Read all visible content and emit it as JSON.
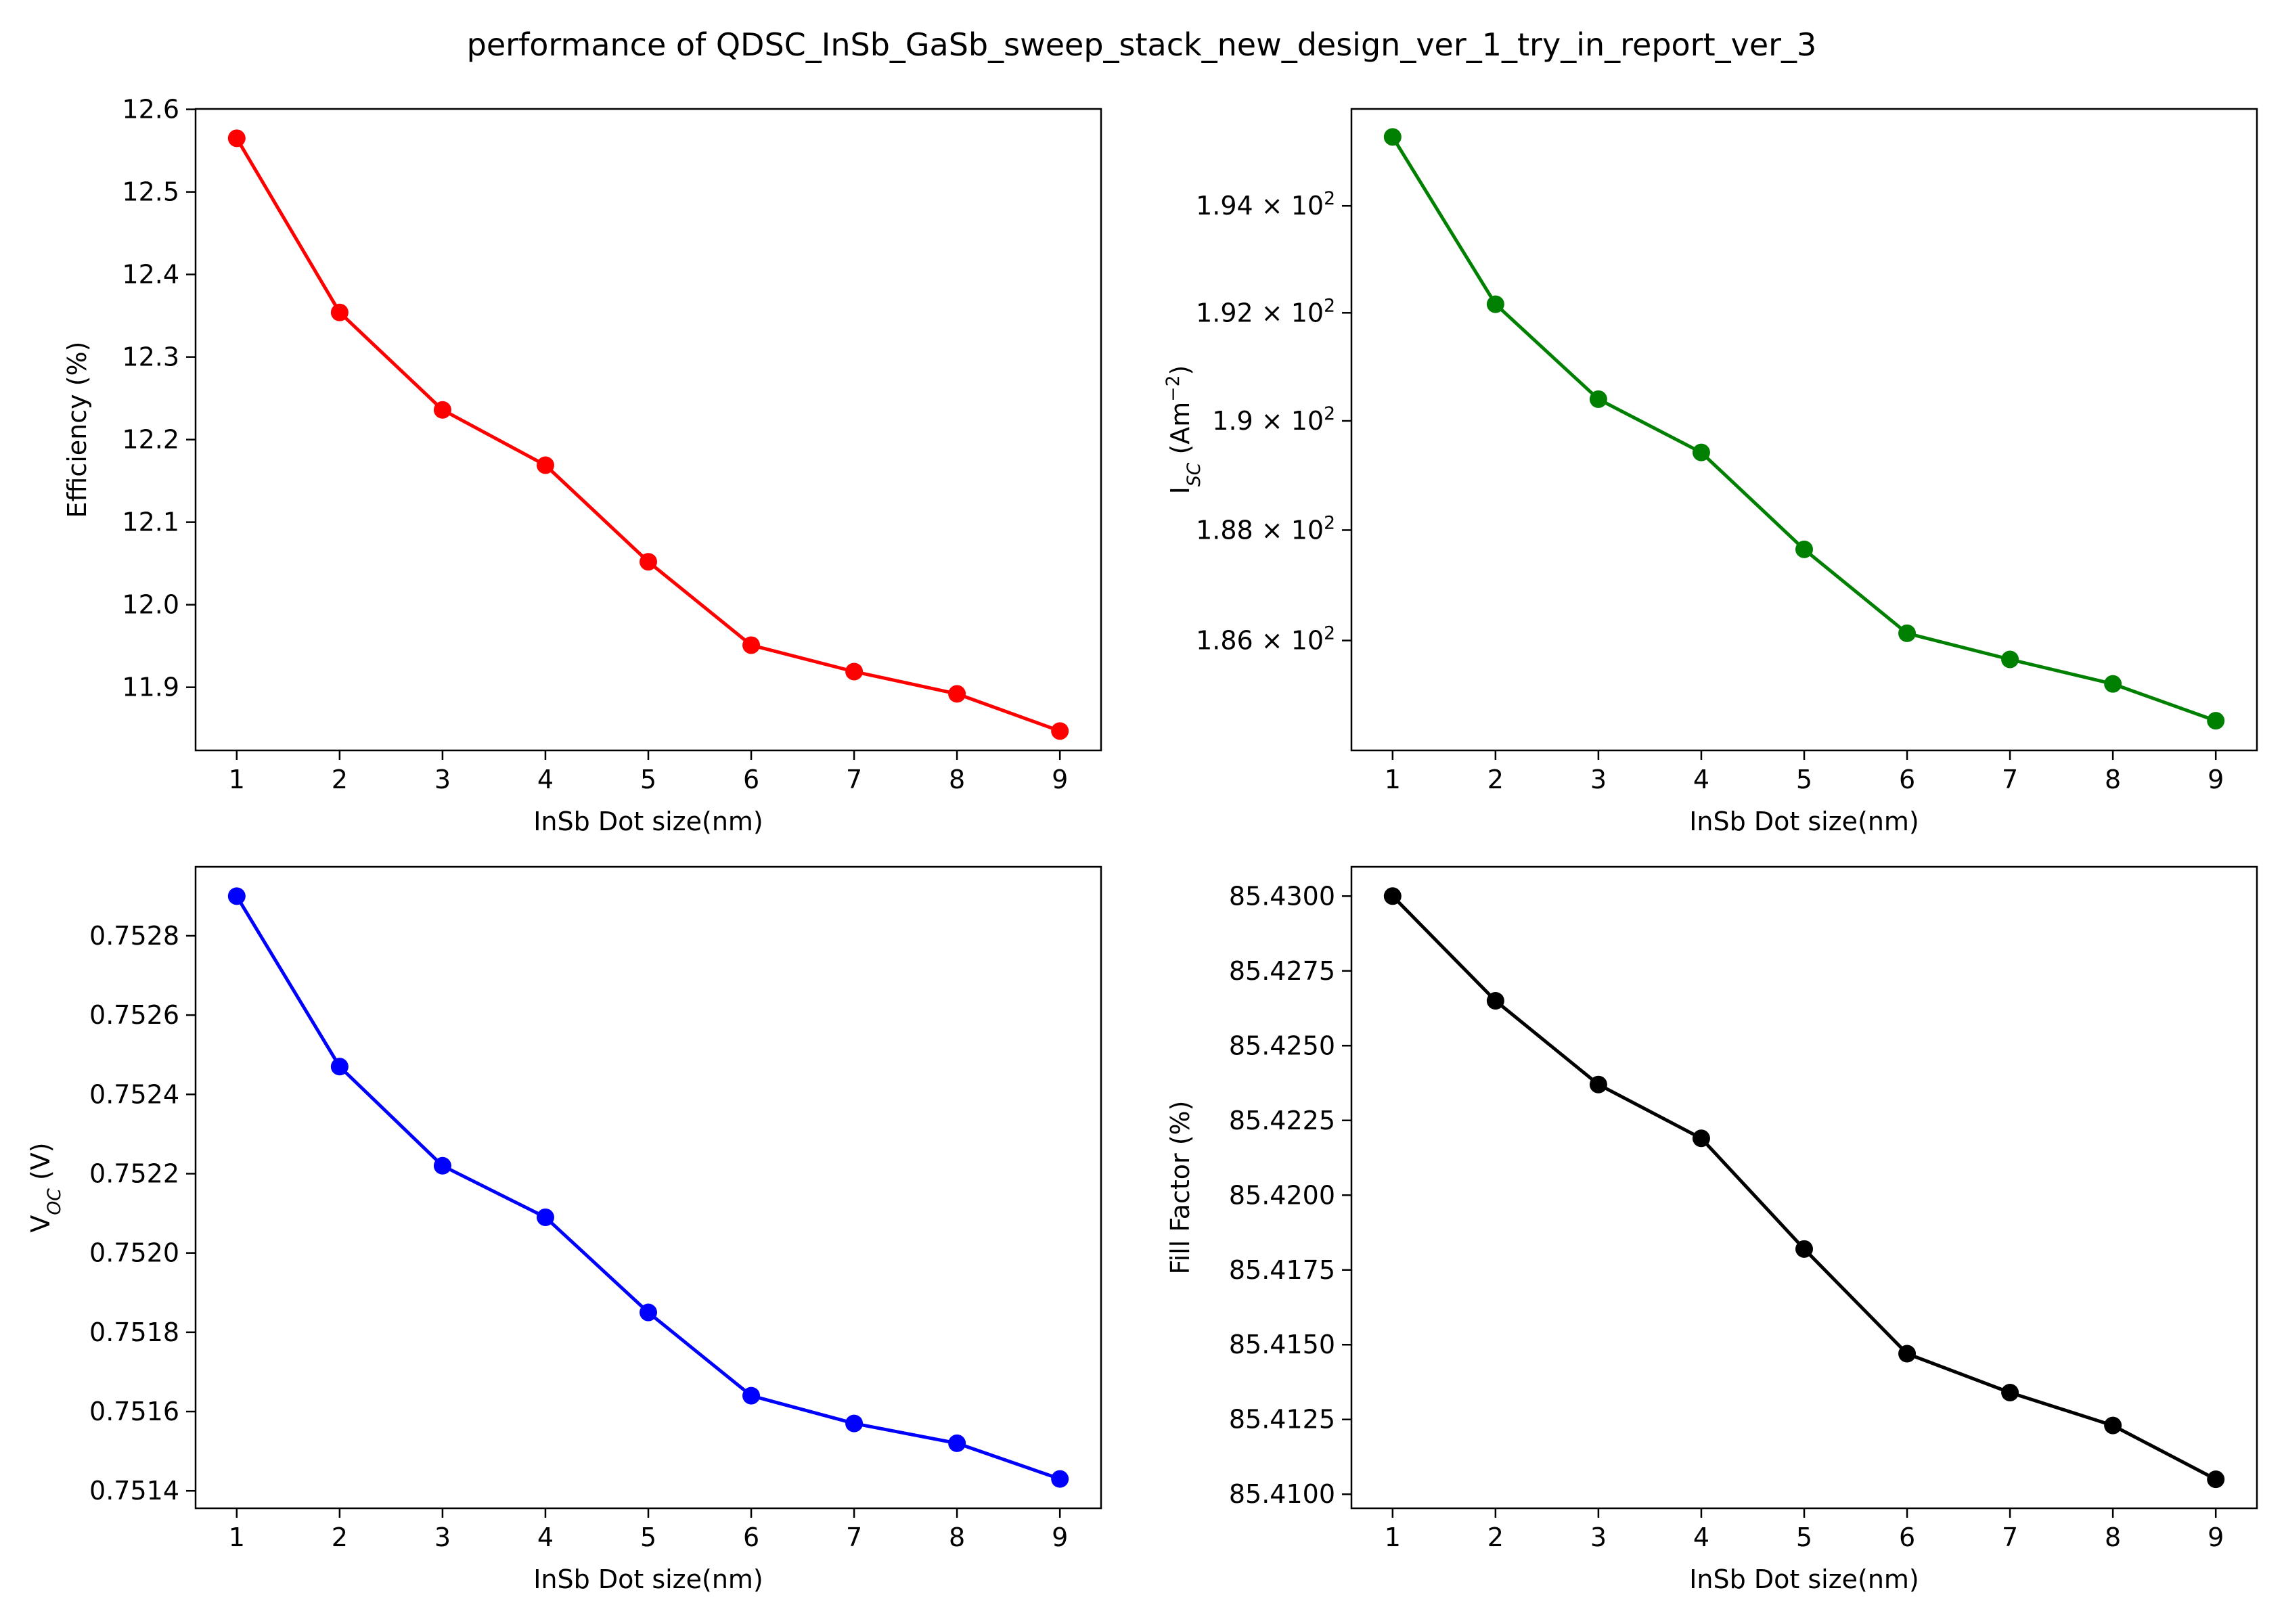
{
  "figure": {
    "title": "performance of QDSC_InSb_GaSb_sweep_stack_new_design_ver_1_try_in_report_ver_3"
  },
  "chart_data": [
    {
      "type": "line",
      "xlabel": "InSb Dot size(nm)",
      "ylabel": "Efficiency (%)",
      "color": "#ff0000",
      "x": [
        1,
        2,
        3,
        4,
        5,
        6,
        7,
        8,
        9
      ],
      "y": [
        12.565,
        12.354,
        12.236,
        12.169,
        12.052,
        11.951,
        11.919,
        11.892,
        11.847
      ],
      "xticks": [
        "1",
        "2",
        "3",
        "4",
        "5",
        "6",
        "7",
        "8",
        "9"
      ],
      "yticks": [
        "11.9",
        "12.0",
        "12.1",
        "12.2",
        "12.3",
        "12.4",
        "12.5",
        "12.6"
      ],
      "xlim": [
        0.6,
        9.4
      ],
      "ylim": [
        11.8235,
        12.6005
      ],
      "grid": false,
      "marker": "circle"
    },
    {
      "type": "line",
      "xlabel": "InSb Dot size(nm)",
      "ylabel": "I_SC (Am^-2)",
      "color": "#008000",
      "scale": "log",
      "x": [
        1,
        2,
        3,
        4,
        5,
        6,
        7,
        8,
        9
      ],
      "y": [
        195.3,
        192.16,
        190.4,
        189.42,
        187.65,
        186.13,
        185.66,
        185.22,
        184.56
      ],
      "xticks": [
        "1",
        "2",
        "3",
        "4",
        "5",
        "6",
        "7",
        "8",
        "9"
      ],
      "yticks": [
        "1.86 × 10^2",
        "1.88 × 10^2",
        "1.9 × 10^2",
        "1.92 × 10^2",
        "1.94 × 10^2"
      ],
      "xlim": [
        0.6,
        9.4
      ],
      "ylim": [
        184.03,
        195.83
      ],
      "grid": false,
      "marker": "circle"
    },
    {
      "type": "line",
      "xlabel": "InSb Dot size(nm)",
      "ylabel": "V_OC (V)",
      "color": "#0000ff",
      "x": [
        1,
        2,
        3,
        4,
        5,
        6,
        7,
        8,
        9
      ],
      "y": [
        0.7529,
        0.75247,
        0.75222,
        0.75209,
        0.75185,
        0.75164,
        0.75157,
        0.75152,
        0.75143
      ],
      "xticks": [
        "1",
        "2",
        "3",
        "4",
        "5",
        "6",
        "7",
        "8",
        "9"
      ],
      "yticks": [
        "0.7514",
        "0.7516",
        "0.7518",
        "0.7520",
        "0.7522",
        "0.7524",
        "0.7526",
        "0.7528"
      ],
      "xlim": [
        0.6,
        9.4
      ],
      "ylim": [
        0.751356,
        0.752974
      ],
      "grid": false,
      "marker": "circle"
    },
    {
      "type": "line",
      "xlabel": "InSb Dot size(nm)",
      "ylabel": "Fill Factor (%)",
      "color": "#000000",
      "x": [
        1,
        2,
        3,
        4,
        5,
        6,
        7,
        8,
        9
      ],
      "y": [
        85.43,
        85.4265,
        85.4237,
        85.4219,
        85.4182,
        85.4147,
        85.4134,
        85.4123,
        85.4105
      ],
      "xticks": [
        "1",
        "2",
        "3",
        "4",
        "5",
        "6",
        "7",
        "8",
        "9"
      ],
      "yticks": [
        "85.4100",
        "85.4125",
        "85.4150",
        "85.4175",
        "85.4200",
        "85.4225",
        "85.4250",
        "85.4275",
        "85.4300"
      ],
      "xlim": [
        0.6,
        9.4
      ],
      "ylim": [
        85.40953,
        85.43098
      ],
      "grid": false,
      "marker": "circle"
    }
  ]
}
